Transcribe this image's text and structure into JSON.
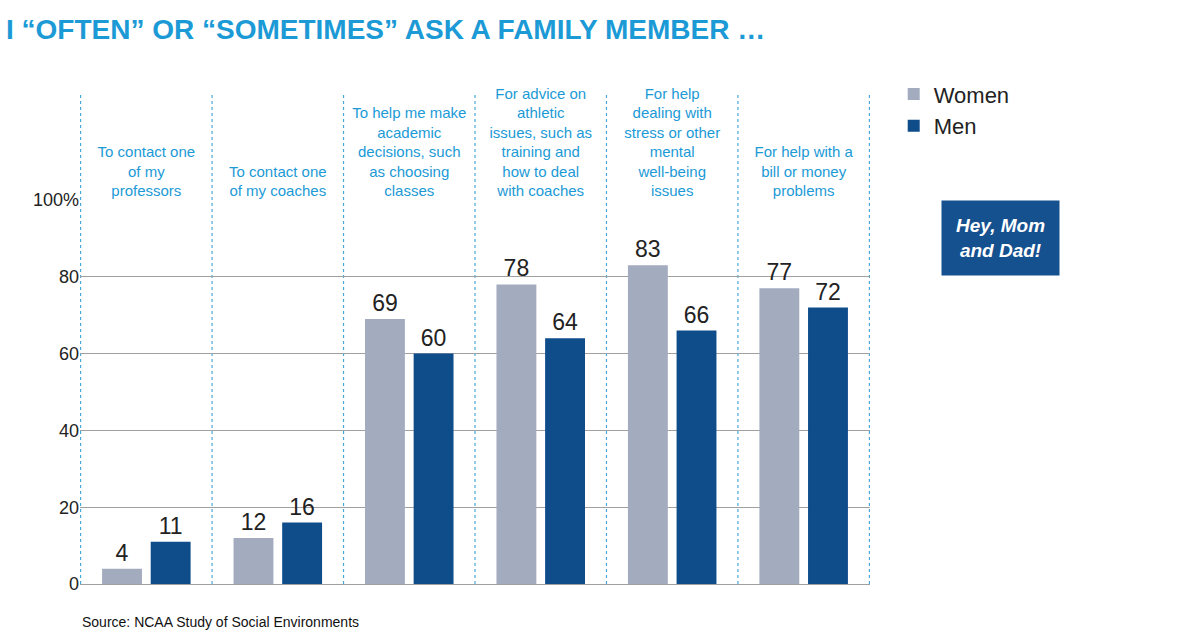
{
  "chart_data": {
    "type": "bar",
    "title": "I “OFTEN” OR “SOMETIMES” ASK A FAMILY MEMBER …",
    "categories": [
      "To contact one of my professors",
      "To contact one of my coaches",
      "To help me make academic decisions, such as choosing classes",
      "For advice on athletic issues, such as training and how to deal with coaches",
      "For help dealing with stress or other mental well-being issues",
      "For help with a bill or money problems"
    ],
    "series": [
      {
        "name": "Women",
        "color": "#a3abbf",
        "values": [
          4,
          12,
          69,
          78,
          83,
          77
        ]
      },
      {
        "name": "Men",
        "color": "#0f4c8a",
        "values": [
          11,
          16,
          60,
          64,
          66,
          72
        ]
      }
    ],
    "ylim": [
      0,
      100
    ],
    "yticks": [
      0,
      20,
      40,
      60,
      80,
      {
        "value": 100,
        "label": "100%"
      }
    ],
    "grid": true,
    "data_labels": true,
    "legend": "right",
    "annotations": [
      {
        "text": "Hey, Mom and Dad!"
      }
    ],
    "source": "Source: NCAA Study of Social Environments"
  }
}
